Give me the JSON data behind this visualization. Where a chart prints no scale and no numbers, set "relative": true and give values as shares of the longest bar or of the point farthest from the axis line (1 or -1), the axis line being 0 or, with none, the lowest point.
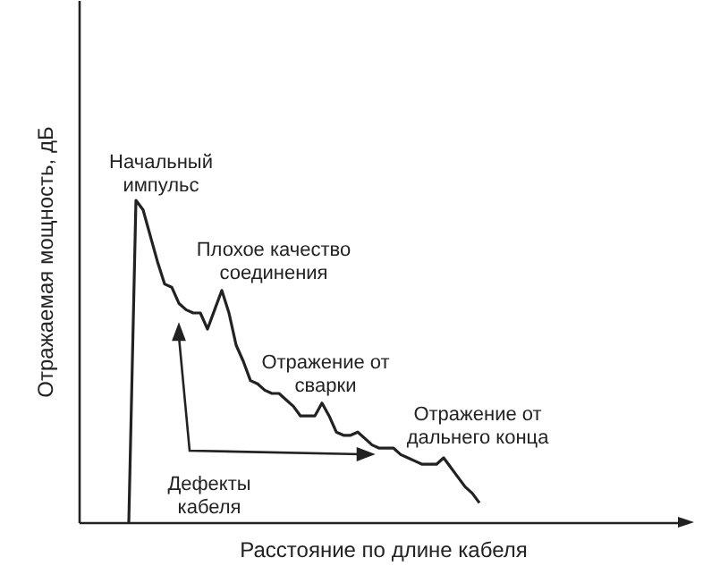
{
  "chart_data": {
    "type": "line",
    "relative": true,
    "xlabel": "Расстояние по длине кабеля",
    "ylabel": "Отражаемая мощность, дБ",
    "categories": [
      null,
      null,
      null,
      null,
      null,
      null,
      null,
      null,
      null,
      null,
      null,
      null,
      null,
      null,
      null,
      null,
      null,
      null,
      null,
      null,
      null,
      null,
      null,
      null,
      null,
      null,
      null,
      null,
      null,
      null,
      null,
      null,
      null,
      null,
      null,
      null,
      null,
      null,
      null,
      null,
      null,
      null,
      null,
      null,
      null,
      null,
      null,
      null,
      null,
      null,
      null,
      null,
      null,
      null,
      null,
      null,
      null,
      null,
      null,
      null,
      null,
      null,
      null,
      null,
      null,
      null,
      null,
      null,
      null,
      null,
      null,
      null,
      null,
      null,
      null,
      null,
      null,
      null,
      null,
      null,
      null,
      null,
      null,
      null,
      null,
      null
    ],
    "series": [
      {
        "color": "#222222",
        "values": [
          null,
          null,
          null,
          null,
          null,
          null,
          null,
          0,
          1,
          0.97,
          0.89,
          0.81,
          0.74,
          0.73,
          0.68,
          0.66,
          0.65,
          0.65,
          0.6,
          0.66,
          0.72,
          0.65,
          0.55,
          0.5,
          0.44,
          0.43,
          0.41,
          0.4,
          0.4,
          0.38,
          0.36,
          0.33,
          0.33,
          0.33,
          0.37,
          0.33,
          0.28,
          0.27,
          0.27,
          0.28,
          0.26,
          0.24,
          0.23,
          0.23,
          0.23,
          0.21,
          0.2,
          0.19,
          0.18,
          0.18,
          0.18,
          0.2,
          0.17,
          0.14,
          0.11,
          0.09,
          0.06,
          null,
          null,
          null,
          null,
          null,
          null,
          null,
          null,
          null,
          null,
          null,
          null,
          null,
          null,
          null,
          null,
          null,
          null,
          null,
          null,
          null,
          null,
          null,
          null,
          null,
          null,
          null,
          null,
          null
        ]
      }
    ],
    "annotations": [
      "Начальный\nимпульс",
      "Плохое качество\nсоединения",
      "Отражение от\nсварки",
      "Отражение от\nдальнего конца",
      "Дефекты\nкабеля"
    ]
  }
}
